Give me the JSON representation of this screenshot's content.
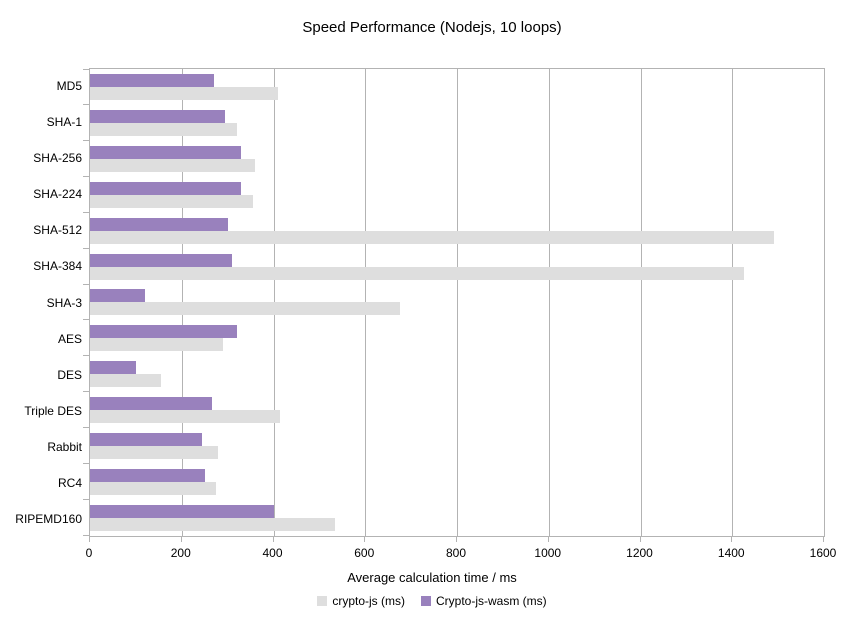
{
  "chart_data": {
    "type": "bar",
    "orientation": "horizontal",
    "title": "Speed Performance (Nodejs, 10 loops)",
    "xlabel": "Average calculation time / ms",
    "categories": [
      "MD5",
      "SHA-1",
      "SHA-256",
      "SHA-224",
      "SHA-512",
      "SHA-384",
      "SHA-3",
      "AES",
      "DES",
      "Triple DES",
      "Rabbit",
      "RC4",
      "RIPEMD160"
    ],
    "series": [
      {
        "name": "crypto-js (ms)",
        "color": "#dedede",
        "values": [
          410,
          320,
          360,
          355,
          1490,
          1425,
          675,
          290,
          155,
          415,
          280,
          275,
          535
        ]
      },
      {
        "name": "Crypto-js-wasm (ms)",
        "color": "#9981bd",
        "values": [
          270,
          295,
          330,
          330,
          300,
          310,
          120,
          320,
          100,
          265,
          245,
          250,
          400
        ]
      }
    ],
    "row_order_top_to_bottom": [
      "Crypto-js-wasm (ms)",
      "crypto-js (ms)"
    ],
    "xlim": [
      0,
      1600
    ],
    "xticks": [
      0,
      200,
      400,
      600,
      800,
      1000,
      1200,
      1400,
      1600
    ],
    "grid": true,
    "grid_color": "#b3b3b3",
    "legend_position": "bottom"
  }
}
